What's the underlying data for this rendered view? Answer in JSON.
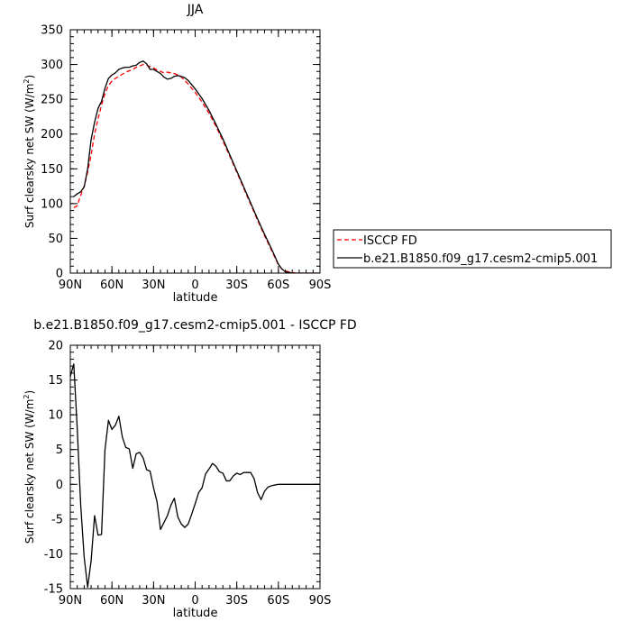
{
  "chart_data": [
    {
      "type": "line",
      "title": "JJA",
      "xlabel": "latitude",
      "ylabel": "Surf clearsky net SW (W/m",
      "ylabel_sup": "2",
      "ylabel_end": ")",
      "xlim": [
        90,
        -90
      ],
      "ylim": [
        0,
        350
      ],
      "xticks": [
        90,
        60,
        30,
        0,
        -30,
        -60,
        -90
      ],
      "xtick_labels": [
        "90N",
        "60N",
        "30N",
        "0",
        "30S",
        "60S",
        "90S"
      ],
      "yticks": [
        0,
        50,
        100,
        150,
        200,
        250,
        300,
        350
      ],
      "ytick_labels": [
        "0",
        "50",
        "100",
        "150",
        "200",
        "250",
        "300",
        "350"
      ],
      "minor_x_step": 5,
      "minor_y_step": 10,
      "legend_position": "right",
      "series": [
        {
          "name": "ISCCP FD",
          "color": "#ff0000",
          "dash": true,
          "x": [
            87.5,
            85,
            82.5,
            80,
            77.5,
            75,
            72.5,
            70,
            67.5,
            65,
            62.5,
            60,
            57.5,
            55,
            52.5,
            50,
            47.5,
            45,
            42.5,
            40,
            37.5,
            35,
            32.5,
            30,
            27.5,
            25,
            22.5,
            20,
            17.5,
            15,
            12.5,
            10,
            7.5,
            5,
            2.5,
            0,
            -2.5,
            -5,
            -10,
            -15,
            -20,
            -25,
            -30,
            -35,
            -40,
            -45,
            -50,
            -55,
            -60,
            -62.5,
            -65,
            -67.5,
            -70,
            -72.5,
            -75,
            -77.5,
            -80,
            -85,
            -90
          ],
          "y": [
            94,
            97,
            112,
            125,
            145,
            170,
            200,
            222,
            242,
            258,
            270,
            276,
            280,
            283,
            286,
            289,
            291,
            293,
            296,
            298,
            300,
            299,
            297,
            295,
            292,
            290,
            288,
            289,
            288,
            287,
            285,
            282,
            277,
            272,
            266,
            260,
            253,
            246,
            230,
            211,
            190,
            168,
            145,
            122,
            99,
            76,
            54,
            33,
            12,
            6,
            3,
            2,
            1,
            0,
            0,
            0,
            0,
            0,
            0
          ]
        },
        {
          "name": "b.e21.B1850.f09_g17.cesm2-cmip5.001",
          "color": "#000000",
          "dash": false,
          "x": [
            87.5,
            85,
            82.5,
            80,
            77.5,
            75,
            72.5,
            70,
            67.5,
            65,
            62.5,
            60,
            57.5,
            55,
            52.5,
            50,
            47.5,
            45,
            42.5,
            40,
            37.5,
            35,
            32.5,
            30,
            27.5,
            25,
            22.5,
            20,
            17.5,
            15,
            12.5,
            10,
            7.5,
            5,
            2.5,
            0,
            -2.5,
            -5,
            -10,
            -15,
            -20,
            -25,
            -30,
            -35,
            -40,
            -45,
            -50,
            -55,
            -60,
            -62.5,
            -65,
            -67.5,
            -70,
            -72.5,
            -75,
            -77.5,
            -80,
            -85,
            -90
          ],
          "y": [
            110,
            114,
            117,
            124,
            150,
            192,
            217,
            237,
            247,
            266,
            280,
            285,
            288,
            293,
            295,
            296,
            296,
            298,
            299,
            303,
            305,
            301,
            293,
            293,
            290,
            287,
            282,
            279,
            280,
            283,
            284,
            283,
            281,
            277,
            271,
            265,
            258,
            251,
            234,
            214,
            193,
            170,
            147,
            124,
            101,
            78,
            56,
            35,
            13,
            6,
            2,
            1,
            0,
            0,
            0,
            0,
            0,
            0,
            0
          ]
        }
      ]
    },
    {
      "type": "line",
      "title": "b.e21.B1850.f09_g17.cesm2-cmip5.001 - ISCCP FD",
      "xlabel": "latitude",
      "ylabel": "Surf clearsky net SW (W/m",
      "ylabel_sup": "2",
      "ylabel_end": ")",
      "xlim": [
        90,
        -90
      ],
      "ylim": [
        -15,
        20
      ],
      "xticks": [
        90,
        60,
        30,
        0,
        -30,
        -60,
        -90
      ],
      "xtick_labels": [
        "90N",
        "60N",
        "30N",
        "0",
        "30S",
        "60S",
        "90S"
      ],
      "yticks": [
        -15,
        -10,
        -5,
        0,
        5,
        10,
        15,
        20
      ],
      "ytick_labels": [
        "-15",
        "-10",
        "-5",
        "0",
        "5",
        "10",
        "15",
        "20"
      ],
      "minor_x_step": 5,
      "minor_y_step": 1,
      "series": [
        {
          "name": "",
          "color": "#000000",
          "dash": false,
          "x": [
            90,
            87.5,
            85,
            82.5,
            80,
            77.5,
            75,
            72.5,
            70,
            67.5,
            65,
            62.5,
            60,
            57.5,
            55,
            52.5,
            50,
            47.5,
            45,
            42.5,
            40,
            37.5,
            35,
            32.5,
            30,
            27.5,
            25,
            22.5,
            20,
            17.5,
            15,
            12.5,
            10,
            7.5,
            5,
            2.5,
            0,
            -2.5,
            -5,
            -7.5,
            -10,
            -12.5,
            -15,
            -17.5,
            -20,
            -22.5,
            -25,
            -27.5,
            -30,
            -32.5,
            -35,
            -37.5,
            -40,
            -42.5,
            -45,
            -47.5,
            -50,
            -52.5,
            -55,
            -57.5,
            -60,
            -62.5,
            -65,
            -67.5,
            -70,
            -72.5,
            -75,
            -77.5,
            -80,
            -82.5,
            -85,
            -87.5,
            -90
          ],
          "y": [
            15.5,
            17.3,
            8.0,
            -3.0,
            -10.5,
            -14.8,
            -11.0,
            -4.5,
            -7.3,
            -7.2,
            5.0,
            9.2,
            7.9,
            8.5,
            9.8,
            6.8,
            5.3,
            5.1,
            2.3,
            4.4,
            4.6,
            3.8,
            2.1,
            1.9,
            -0.5,
            -2.5,
            -6.5,
            -5.5,
            -4.5,
            -3.0,
            -2.0,
            -4.7,
            -5.7,
            -6.2,
            -5.7,
            -4.3,
            -2.8,
            -1.2,
            -0.5,
            1.5,
            2.2,
            3.0,
            2.6,
            1.8,
            1.6,
            0.5,
            0.5,
            1.2,
            1.6,
            1.4,
            1.7,
            1.7,
            1.7,
            0.8,
            -1.2,
            -2.2,
            -1.0,
            -0.4,
            -0.2,
            -0.1,
            0.0,
            0.0,
            0.0,
            0.0,
            0.0,
            0.0,
            0.0,
            0.0,
            0.0,
            0.0,
            0.0,
            0.0,
            0.0
          ]
        }
      ]
    }
  ]
}
